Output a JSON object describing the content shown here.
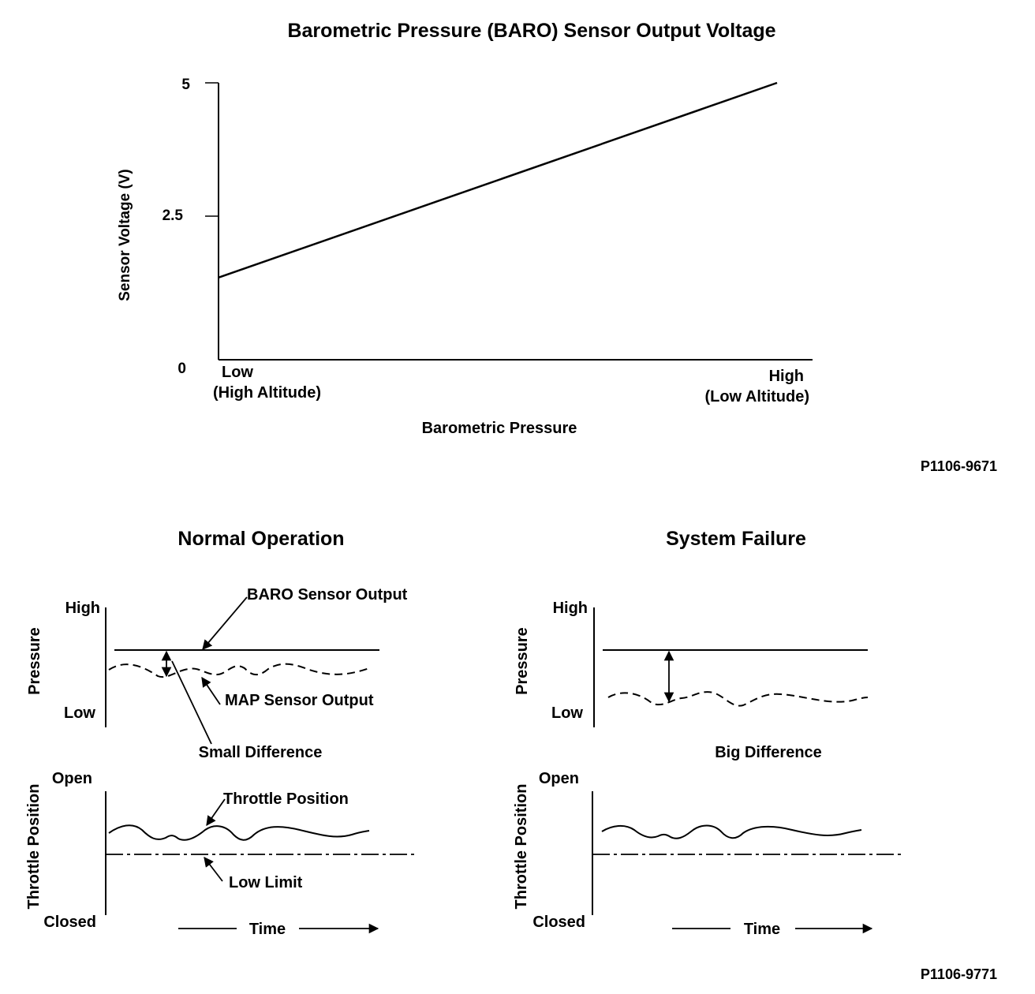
{
  "top_chart": {
    "title": "Barometric Pressure (BARO) Sensor Output Voltage",
    "ylabel": "Sensor Voltage (V)",
    "xlabel": "Barometric Pressure",
    "y_ticks": [
      "5",
      "2.5",
      "0"
    ],
    "x_low_label": "Low",
    "x_low_sub": "(High Altitude)",
    "x_high_label": "High",
    "x_high_sub": "(Low Altitude)",
    "figure_id": "P1106-9671"
  },
  "chart_data": {
    "type": "line",
    "title": "Barometric Pressure (BARO) Sensor Output Voltage",
    "xlabel": "Barometric Pressure",
    "ylabel": "Sensor Voltage (V)",
    "ylim": [
      0,
      5
    ],
    "x_categories": [
      "Low (High Altitude)",
      "High (Low Altitude)"
    ],
    "series": [
      {
        "values": [
          1.0,
          5.0
        ]
      }
    ]
  },
  "normal": {
    "title": "Normal Operation",
    "pressure_axis": "Pressure",
    "high": "High",
    "low": "Low",
    "baro_label": "BARO Sensor Output",
    "map_label": "MAP Sensor Output",
    "diff_label": "Small Difference",
    "throttle_axis": "Throttle Position",
    "open": "Open",
    "closed": "Closed",
    "throttle_label": "Throttle Position",
    "low_limit_label": "Low Limit",
    "time_label": "Time"
  },
  "failure": {
    "title": "System Failure",
    "pressure_axis": "Pressure",
    "high": "High",
    "low": "Low",
    "diff_label": "Big Difference",
    "throttle_axis": "Throttle Position",
    "open": "Open",
    "closed": "Closed",
    "time_label": "Time"
  },
  "bottom_figure_id": "P1106-9771"
}
